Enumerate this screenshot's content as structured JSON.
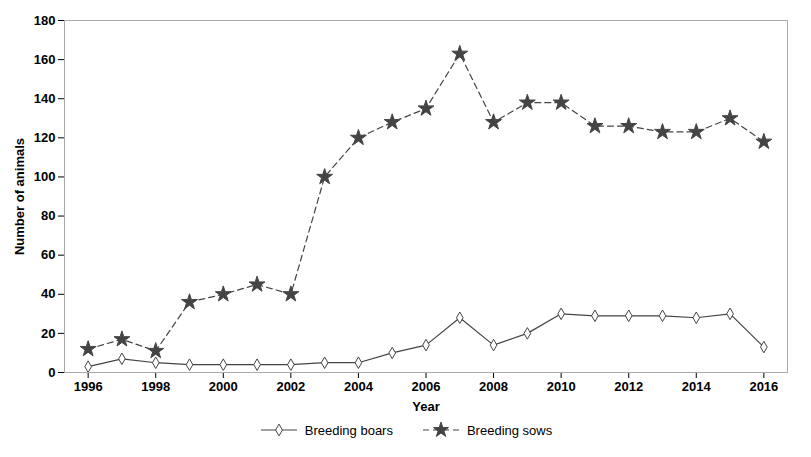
{
  "chart_data": {
    "type": "line",
    "xlabel": "Year",
    "ylabel": "Number of animals",
    "x": [
      1996,
      1997,
      1998,
      1999,
      2000,
      2001,
      2002,
      2003,
      2004,
      2005,
      2006,
      2007,
      2008,
      2009,
      2010,
      2011,
      2012,
      2013,
      2014,
      2015,
      2016
    ],
    "series": [
      {
        "name": "Breeding boars",
        "color": "#444444",
        "marker": "diamond",
        "line_style": "solid",
        "values": [
          3,
          7,
          5,
          4,
          4,
          4,
          4,
          5,
          5,
          10,
          14,
          28,
          14,
          20,
          30,
          29,
          29,
          29,
          28,
          30,
          13
        ]
      },
      {
        "name": "Breeding sows",
        "color": "#444444",
        "marker": "star",
        "line_style": "dashed",
        "values": [
          12,
          17,
          11,
          36,
          40,
          45,
          40,
          100,
          120,
          128,
          135,
          163,
          128,
          138,
          138,
          126,
          126,
          123,
          123,
          130,
          118
        ]
      }
    ],
    "xlim": [
      1995.3,
      2016.7
    ],
    "xticks": [
      1996,
      1998,
      2000,
      2002,
      2004,
      2006,
      2008,
      2010,
      2012,
      2014,
      2016
    ],
    "ylim": [
      0,
      180
    ],
    "yticks": [
      0,
      20,
      40,
      60,
      80,
      100,
      120,
      140,
      160,
      180
    ],
    "grid": false,
    "legend": "bottom"
  }
}
